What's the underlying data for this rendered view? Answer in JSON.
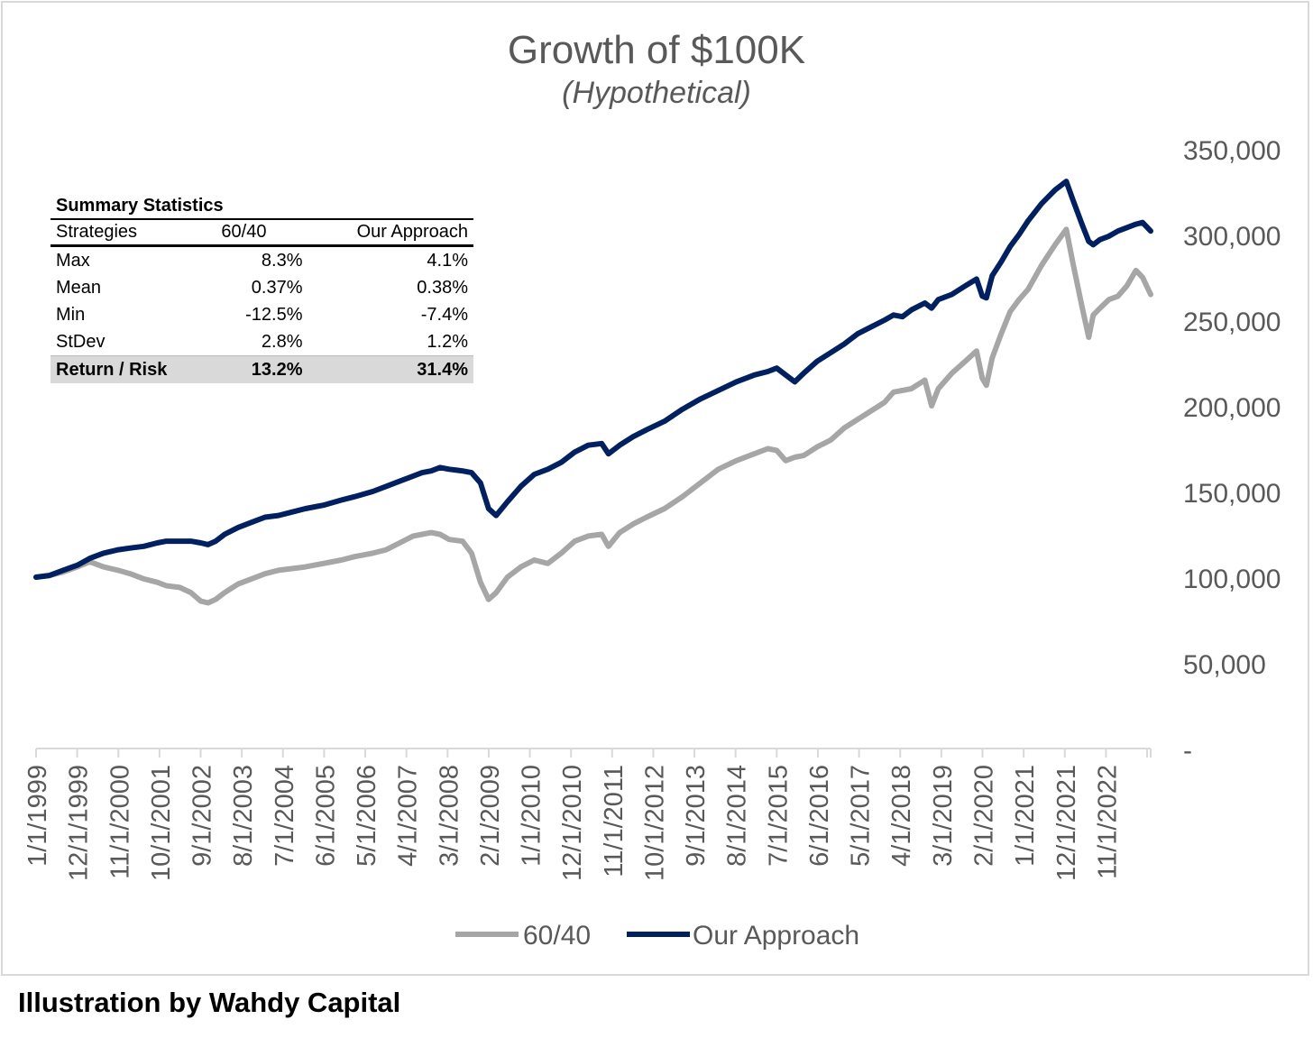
{
  "caption": "Illustration by Wahdy Capital",
  "chart_data": {
    "type": "line",
    "title": "Growth of $100K",
    "subtitle": "(Hypothetical)",
    "xlabel": "",
    "ylabel": "",
    "ylim": [
      0,
      350000
    ],
    "y_ticks": [
      "-",
      "50,000",
      "100,000",
      "150,000",
      "200,000",
      "250,000",
      "300,000",
      "350,000"
    ],
    "y_tick_values": [
      0,
      50000,
      100000,
      150000,
      200000,
      250000,
      300000,
      350000
    ],
    "x_tick_labels": [
      "1/1/1999",
      "12/1/1999",
      "11/1/2000",
      "10/1/2001",
      "9/1/2002",
      "8/1/2003",
      "7/1/2004",
      "6/1/2005",
      "5/1/2006",
      "4/1/2007",
      "3/1/2008",
      "2/1/2009",
      "1/1/2010",
      "12/1/2010",
      "11/1/2011",
      "10/1/2012",
      "9/1/2013",
      "8/1/2014",
      "7/1/2015",
      "6/1/2016",
      "5/1/2017",
      "4/1/2018",
      "3/1/2019",
      "2/1/2020",
      "1/1/2021",
      "12/1/2021",
      "11/1/2022"
    ],
    "x_range": [
      1999.0,
      2023.83
    ],
    "legend_position": "bottom-center",
    "grid": false,
    "series": [
      {
        "name": "60/40",
        "color": "#a6a6a6",
        "x": [
          1999.0,
          1999.3,
          1999.6,
          1999.92,
          2000.2,
          2000.5,
          2000.83,
          2001.1,
          2001.4,
          2001.7,
          2001.9,
          2002.2,
          2002.45,
          2002.67,
          2002.83,
          2003.0,
          2003.2,
          2003.5,
          2003.8,
          2004.1,
          2004.4,
          2004.7,
          2005.0,
          2005.4,
          2005.8,
          2006.1,
          2006.5,
          2006.8,
          2007.1,
          2007.4,
          2007.6,
          2007.8,
          2008.0,
          2008.2,
          2008.5,
          2008.7,
          2008.9,
          2009.08,
          2009.25,
          2009.5,
          2009.8,
          2010.1,
          2010.4,
          2010.7,
          2011.0,
          2011.3,
          2011.6,
          2011.75,
          2012.0,
          2012.3,
          2012.6,
          2013.0,
          2013.4,
          2013.8,
          2014.2,
          2014.6,
          2015.0,
          2015.3,
          2015.5,
          2015.7,
          2015.9,
          2016.1,
          2016.4,
          2016.7,
          2017.0,
          2017.3,
          2017.6,
          2017.9,
          2018.1,
          2018.3,
          2018.5,
          2018.8,
          2018.95,
          2019.1,
          2019.4,
          2019.7,
          2019.95,
          2020.08,
          2020.17,
          2020.3,
          2020.5,
          2020.7,
          2020.9,
          2021.1,
          2021.4,
          2021.7,
          2021.95,
          2022.1,
          2022.3,
          2022.45,
          2022.55,
          2022.7,
          2022.9,
          2023.1,
          2023.3,
          2023.5,
          2023.65,
          2023.83
        ],
        "values": [
          100000,
          101000,
          103000,
          106000,
          109000,
          106000,
          104000,
          102000,
          99000,
          97000,
          95000,
          94000,
          91000,
          86000,
          85000,
          87000,
          91000,
          96000,
          99000,
          102000,
          104000,
          105000,
          106000,
          108000,
          110000,
          112000,
          114000,
          116000,
          120000,
          124000,
          125000,
          126000,
          125000,
          122000,
          121000,
          114000,
          97000,
          87000,
          91000,
          100000,
          106000,
          110000,
          108000,
          114000,
          121000,
          124000,
          125000,
          118000,
          126000,
          131000,
          135000,
          140000,
          147000,
          155000,
          163000,
          168000,
          172000,
          175000,
          174000,
          168000,
          170000,
          171000,
          176000,
          180000,
          187000,
          192000,
          197000,
          202000,
          208000,
          209000,
          210000,
          215000,
          200000,
          210000,
          219000,
          226000,
          232000,
          216000,
          212000,
          228000,
          242000,
          255000,
          262000,
          268000,
          282000,
          294000,
          303000,
          283000,
          258000,
          240000,
          253000,
          257000,
          262000,
          264000,
          270000,
          279000,
          275000,
          265000
        ]
      },
      {
        "name": "Our Approach",
        "color": "#002060",
        "x": [
          1999.0,
          1999.3,
          1999.6,
          1999.92,
          2000.2,
          2000.5,
          2000.83,
          2001.1,
          2001.4,
          2001.7,
          2001.9,
          2002.2,
          2002.45,
          2002.67,
          2002.83,
          2003.0,
          2003.2,
          2003.5,
          2003.8,
          2004.1,
          2004.4,
          2004.7,
          2005.0,
          2005.4,
          2005.8,
          2006.1,
          2006.5,
          2006.8,
          2007.1,
          2007.4,
          2007.6,
          2007.8,
          2008.0,
          2008.2,
          2008.5,
          2008.7,
          2008.9,
          2009.08,
          2009.25,
          2009.5,
          2009.8,
          2010.1,
          2010.4,
          2010.7,
          2011.0,
          2011.3,
          2011.6,
          2011.75,
          2012.0,
          2012.3,
          2012.6,
          2013.0,
          2013.4,
          2013.8,
          2014.2,
          2014.6,
          2015.0,
          2015.3,
          2015.5,
          2015.7,
          2015.9,
          2016.1,
          2016.4,
          2016.7,
          2017.0,
          2017.3,
          2017.6,
          2017.9,
          2018.1,
          2018.3,
          2018.5,
          2018.8,
          2018.95,
          2019.1,
          2019.4,
          2019.7,
          2019.95,
          2020.08,
          2020.17,
          2020.3,
          2020.5,
          2020.7,
          2020.9,
          2021.1,
          2021.4,
          2021.7,
          2021.95,
          2022.1,
          2022.3,
          2022.45,
          2022.55,
          2022.7,
          2022.9,
          2023.1,
          2023.3,
          2023.5,
          2023.65,
          2023.83
        ],
        "values": [
          100000,
          101000,
          104000,
          107000,
          111000,
          114000,
          116000,
          117000,
          118000,
          120000,
          121000,
          121000,
          121000,
          120000,
          119000,
          121000,
          125000,
          129000,
          132000,
          135000,
          136000,
          138000,
          140000,
          142000,
          145000,
          147000,
          150000,
          153000,
          156000,
          159000,
          161000,
          162000,
          164000,
          163000,
          162000,
          161000,
          155000,
          140000,
          136000,
          144000,
          153000,
          160000,
          163000,
          167000,
          173000,
          177000,
          178000,
          172000,
          177000,
          182000,
          186000,
          191000,
          198000,
          204000,
          209000,
          214000,
          218000,
          220000,
          222000,
          218000,
          214000,
          219000,
          226000,
          231000,
          236000,
          242000,
          246000,
          250000,
          253000,
          252000,
          256000,
          260000,
          257000,
          262000,
          265000,
          270000,
          274000,
          264000,
          263000,
          276000,
          284000,
          293000,
          300000,
          308000,
          318000,
          326000,
          331000,
          320000,
          306000,
          296000,
          294000,
          297000,
          299000,
          302000,
          304000,
          306000,
          307000,
          302000
        ]
      }
    ]
  },
  "summary": {
    "title": "Summary Statistics",
    "headers": [
      "Strategies",
      "60/40",
      "Our Approach"
    ],
    "rows": [
      {
        "label": "Max",
        "a": "8.3%",
        "b": "4.1%"
      },
      {
        "label": "Mean",
        "a": "0.37%",
        "b": "0.38%"
      },
      {
        "label": "Min",
        "a": "-12.5%",
        "b": "-7.4%"
      },
      {
        "label": "StDev",
        "a": "2.8%",
        "b": "1.2%"
      },
      {
        "label": "Return / Risk",
        "a": "13.2%",
        "b": "31.4%"
      }
    ]
  }
}
